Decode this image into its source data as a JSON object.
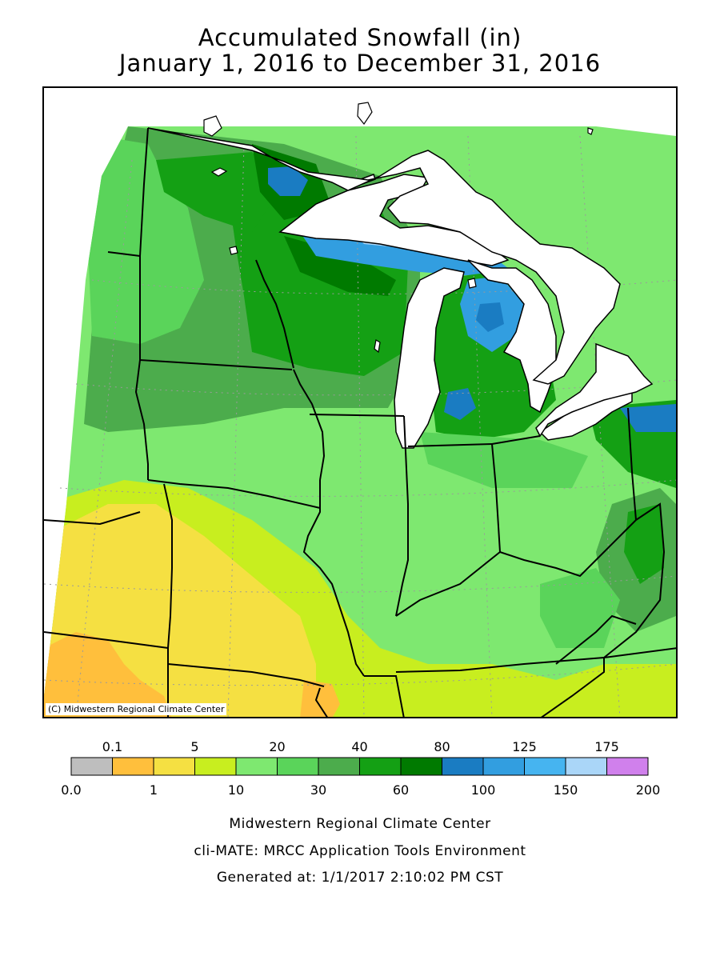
{
  "title": {
    "line1": "Accumulated Snowfall (in)",
    "line2": "January 1, 2016 to December 31, 2016"
  },
  "map": {
    "copyright": "(C) Midwestern Regional Climate Center",
    "land_base_color": "#7ee870",
    "lake_color": "#ffffff",
    "border_color": "#000000",
    "grid_color": "#9a9a9a"
  },
  "legend": {
    "top_labels": [
      "0.1",
      "5",
      "20",
      "40",
      "80",
      "125",
      "175"
    ],
    "bottom_labels": [
      "0.0",
      "1",
      "10",
      "30",
      "60",
      "100",
      "150",
      "200"
    ],
    "colors": [
      "#bebebe",
      "#ffbf3c",
      "#f5e042",
      "#c8ee1f",
      "#7ee870",
      "#5ad45a",
      "#4cac4c",
      "#14a014",
      "#007a00",
      "#1a7cc2",
      "#329ee0",
      "#46b4f0",
      "#aad6f8",
      "#d080ec"
    ]
  },
  "footer": {
    "line1": "Midwestern Regional Climate Center",
    "line2": "cli-MATE: MRCC Application Tools Environment",
    "line3": "Generated at: 1/1/2017 2:10:02 PM CST"
  }
}
